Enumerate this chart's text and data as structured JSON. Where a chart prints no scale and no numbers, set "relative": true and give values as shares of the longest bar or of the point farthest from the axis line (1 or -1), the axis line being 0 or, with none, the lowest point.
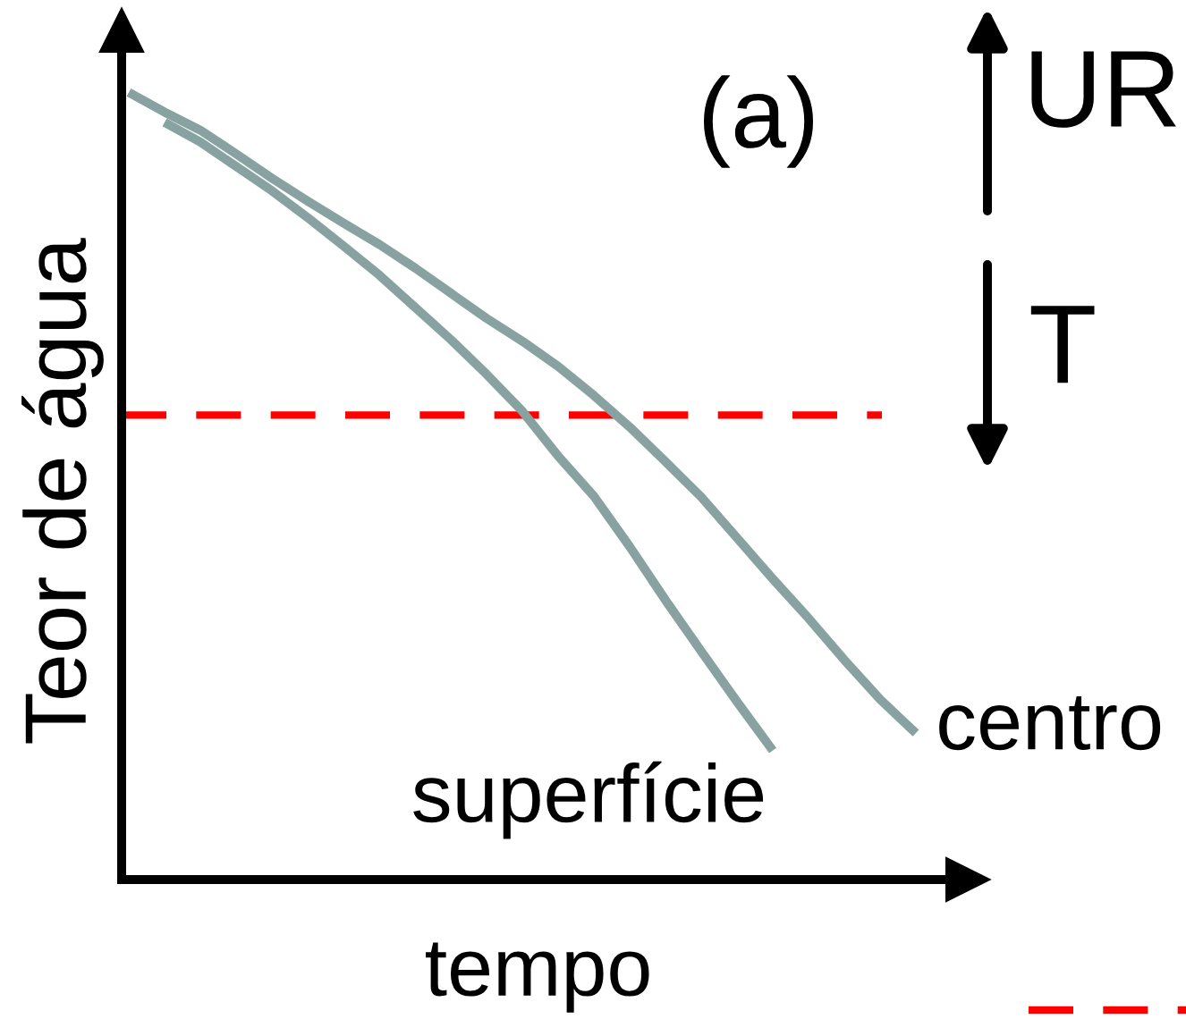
{
  "chart_data": {
    "type": "line",
    "relative": true,
    "xlabel": "tempo",
    "ylabel": "Teor de água",
    "categories": [
      null,
      null,
      null,
      null,
      null,
      null,
      null,
      null,
      null,
      null,
      null,
      null,
      null,
      null,
      null,
      null,
      null,
      null,
      null,
      null,
      null,
      null,
      null
    ],
    "series": [
      {
        "name": "superfície",
        "color": "#88a2a2",
        "values": [
          null,
          0.962,
          0.937,
          0.906,
          0.875,
          0.841,
          0.805,
          0.768,
          0.727,
          0.686,
          0.642,
          0.595,
          0.538,
          0.487,
          0.423,
          0.355,
          0.29,
          0.226,
          0.164,
          null,
          null,
          null,
          null
        ]
      },
      {
        "name": "centro",
        "color": "#88a2a2",
        "values": [
          1.0,
          0.975,
          0.952,
          0.922,
          0.891,
          0.862,
          0.834,
          0.807,
          0.777,
          0.745,
          0.713,
          0.684,
          0.652,
          0.615,
          0.575,
          0.531,
          0.486,
          0.434,
          0.382,
          0.332,
          0.279,
          0.229,
          0.186
        ]
      }
    ],
    "ref_lines": [
      {
        "axis": "y",
        "value": 0.59,
        "color": "#ff0000",
        "line_style": "dashed"
      }
    ],
    "annotations": [
      "(a)",
      "UR",
      "T"
    ]
  }
}
